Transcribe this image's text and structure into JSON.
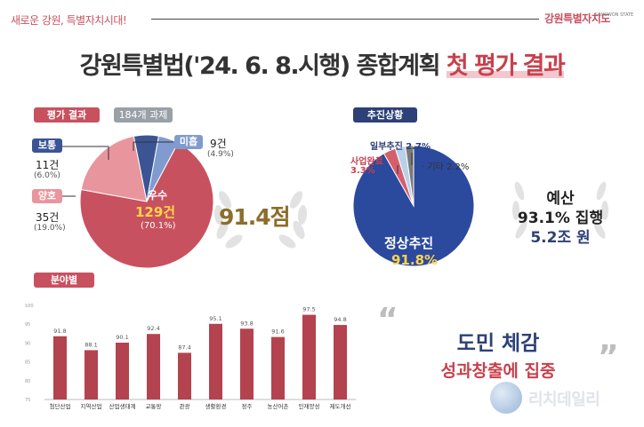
{
  "header": {
    "slogan": "새로운 강원, 특별자치시대!",
    "logo_main": "강원특별자치도",
    "logo_sub": "GANGWON STATE"
  },
  "title": {
    "main": "강원특별법('24. 6. 8.시행) 종합계획",
    "highlight": "첫 평가 결과"
  },
  "eval_section": {
    "label": "평가 결과",
    "tag": "184개 과제",
    "score": "91.4점"
  },
  "progress_section": {
    "label": "추진상황",
    "budget_label": "예산",
    "budget_rate": "93.1% 집행",
    "budget_amount": "5.2조 원"
  },
  "field_section": {
    "label": "분야별"
  },
  "slogan": {
    "line1": "도민 체감",
    "line2": "성과창출에 집중"
  },
  "watermark": "리치데일리",
  "chart_data": [
    {
      "type": "pie",
      "name": "평가 결과",
      "slices": [
        {
          "label": "우수",
          "count": "129건",
          "pct": "(70.1%)",
          "value": 70.1,
          "color": "#c8515f"
        },
        {
          "label": "양호",
          "count": "35건",
          "pct": "(19.0%)",
          "value": 19.0,
          "color": "#e9959d"
        },
        {
          "label": "보통",
          "count": "11건",
          "pct": "(6.0%)",
          "value": 6.0,
          "color": "#3b5494"
        },
        {
          "label": "미흡",
          "count": "9건",
          "pct": "(4.9%)",
          "value": 4.9,
          "color": "#7f9bd0"
        }
      ]
    },
    {
      "type": "pie",
      "name": "추진상황",
      "slices": [
        {
          "label": "정상추진",
          "text": "91.8%",
          "value": 91.8,
          "color": "#2b4a9e"
        },
        {
          "label": "사업완료",
          "text": "3.3%",
          "value": 3.3,
          "color": "#d4606c"
        },
        {
          "label": "일부추진",
          "text": "2.7%",
          "value": 2.7,
          "color": "#b9d0ea"
        },
        {
          "label": "기타",
          "text": "2.2%",
          "value": 2.2,
          "color": "#7a7a7a"
        }
      ]
    },
    {
      "type": "bar",
      "name": "분야별",
      "categories": [
        "첨단산업",
        "지역산업",
        "산업생태계",
        "교통망",
        "관광",
        "생활환경",
        "정주",
        "농산어촌",
        "인재양성",
        "제도개선"
      ],
      "values": [
        91.8,
        88.1,
        90.1,
        92.4,
        87.4,
        95.1,
        93.8,
        91.6,
        97.5,
        94.8
      ],
      "value_labels": [
        "91.8",
        "88.1",
        "90.1",
        "92.4",
        "87.4",
        "95.1",
        "93.8",
        "91.6",
        "97.5",
        "94.8"
      ],
      "ylim": [
        75,
        100
      ],
      "y_ticks": [
        "100",
        "95",
        "90",
        "85",
        "80",
        "75"
      ],
      "color": "#b3434f",
      "grid": false
    }
  ]
}
